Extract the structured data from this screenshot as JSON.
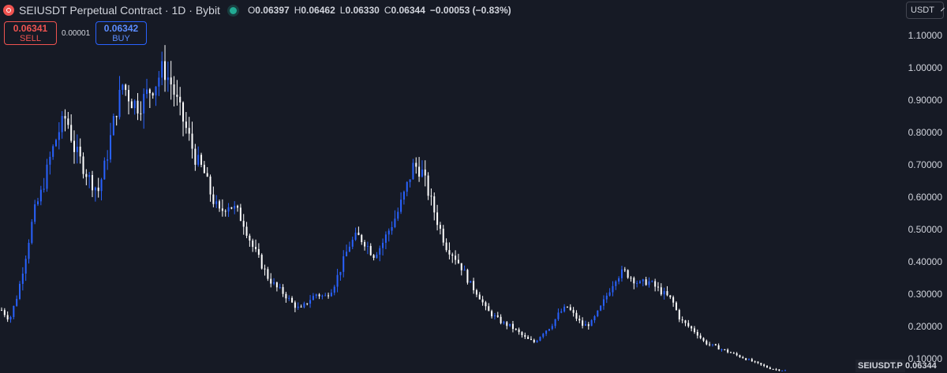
{
  "header": {
    "title": "SEIUSDT Perpetual Contract · 1D · Bybit",
    "ohlc": [
      {
        "key": "O",
        "value": "0.06397"
      },
      {
        "key": "H",
        "value": "0.06462"
      },
      {
        "key": "L",
        "value": "0.06330"
      },
      {
        "key": "C",
        "value": "0.06344"
      }
    ],
    "change": "−0.00053 (−0.83%)"
  },
  "trade": {
    "sell_price": "0.06341",
    "sell_label": "SELL",
    "spread": "0.00001",
    "buy_price": "0.06342",
    "buy_label": "BUY"
  },
  "currency": "USDT",
  "symbol_tag": "SEIUSDT.P",
  "last_price": "0.06344",
  "colors": {
    "background": "#161a25",
    "candle_up": "#2962ff",
    "candle_down": "#ffffff",
    "sell": "#ef5350",
    "buy": "#2962ff",
    "status": "#22ab94"
  },
  "chart_data": {
    "type": "candlestick",
    "y_ticks": [
      "0.10000",
      "0.20000",
      "0.30000",
      "0.40000",
      "0.50000",
      "0.60000",
      "0.70000",
      "0.80000",
      "0.90000",
      "1.00000",
      "1.10000"
    ],
    "ylim": [
      0.055,
      1.21
    ],
    "grid": false,
    "close_path": [
      0.25,
      0.22,
      0.3,
      0.42,
      0.55,
      0.62,
      0.72,
      0.8,
      0.85,
      0.75,
      0.7,
      0.65,
      0.62,
      0.72,
      0.85,
      0.95,
      0.9,
      0.88,
      0.92,
      0.95,
      1.0,
      0.95,
      0.87,
      0.8,
      0.72,
      0.68,
      0.6,
      0.55,
      0.58,
      0.56,
      0.52,
      0.45,
      0.4,
      0.35,
      0.32,
      0.3,
      0.27,
      0.25,
      0.28,
      0.3,
      0.29,
      0.32,
      0.38,
      0.45,
      0.48,
      0.46,
      0.42,
      0.45,
      0.5,
      0.55,
      0.62,
      0.7,
      0.68,
      0.6,
      0.52,
      0.45,
      0.42,
      0.38,
      0.33,
      0.3,
      0.25,
      0.23,
      0.21,
      0.2,
      0.18,
      0.16,
      0.15,
      0.18,
      0.2,
      0.24,
      0.26,
      0.23,
      0.2,
      0.21,
      0.25,
      0.3,
      0.35,
      0.37,
      0.35,
      0.33,
      0.34,
      0.32,
      0.3,
      0.28,
      0.22,
      0.2,
      0.18,
      0.15,
      0.14,
      0.13,
      0.12,
      0.11,
      0.1,
      0.09,
      0.08,
      0.07,
      0.065,
      0.063
    ]
  }
}
